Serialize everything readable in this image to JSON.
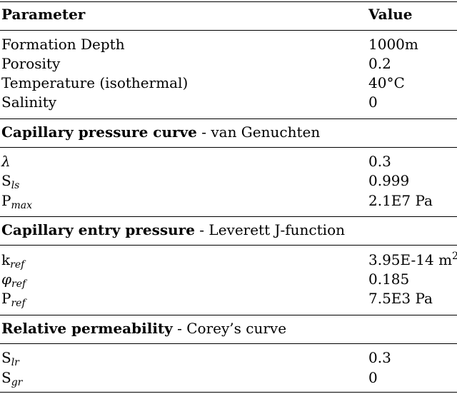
{
  "header": {
    "param": "Parameter",
    "value": "Value"
  },
  "general": [
    {
      "name": "Formation Depth",
      "value": "1000m"
    },
    {
      "name": "Porosity",
      "value": "0.2"
    },
    {
      "name": "Temperature (isothermal)",
      "value": "40°C"
    },
    {
      "name": "Salinity",
      "value": "0"
    }
  ],
  "capillary_curve": {
    "title": "Capillary pressure curve",
    "subtitle": " - van Genuchten",
    "rows": [
      {
        "sym": "λ",
        "sub": "",
        "value": "0.3"
      },
      {
        "sym": "S",
        "sub": "ls",
        "value": "0.999"
      },
      {
        "sym": "P",
        "sub": "max",
        "value": "2.1E7 Pa"
      }
    ]
  },
  "capillary_entry": {
    "title": "Capillary entry pressure",
    "subtitle": " - Leverett J-function",
    "rows": [
      {
        "sym": "k",
        "sub": "ref",
        "value": "3.95E-14 m",
        "sup": "2"
      },
      {
        "sym": "φ",
        "sub": "ref",
        "value": "0.185"
      },
      {
        "sym": "P",
        "sub": "ref",
        "value": "7.5E3 Pa"
      }
    ]
  },
  "relperm": {
    "title": "Relative permeability",
    "subtitle": " - Corey’s curve",
    "rows": [
      {
        "sym": "S",
        "sub": "lr",
        "value": "0.3"
      },
      {
        "sym": "S",
        "sub": "gr",
        "value": "0"
      }
    ]
  }
}
